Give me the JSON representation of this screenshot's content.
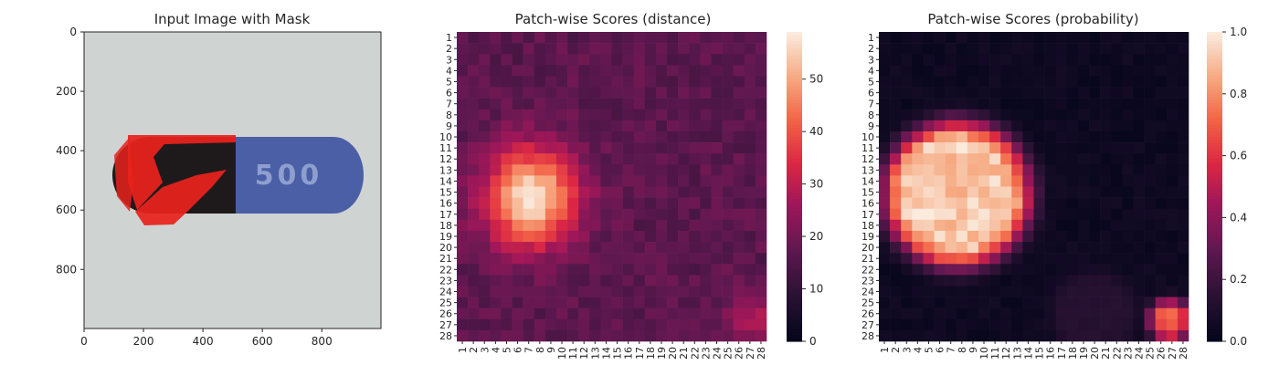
{
  "chart_data": [
    {
      "type": "image",
      "title": "Input Image with Mask",
      "xlabel": "",
      "ylabel": "",
      "xlim": [
        0,
        999
      ],
      "ylim": [
        999,
        0
      ],
      "xticks": [
        0,
        200,
        400,
        600,
        800
      ],
      "yticks": [
        0,
        200,
        400,
        600,
        800
      ],
      "capsule_text": "500",
      "colors": {
        "background": "#cfd4d3",
        "capsule_cap": "#1e1a1c",
        "capsule_body": "#4b5fa6",
        "mask": "#e8221c"
      }
    },
    {
      "type": "heatmap",
      "title": "Patch-wise Scores (distance)",
      "rows": 28,
      "cols": 28,
      "xticklabels": [
        "1",
        "2",
        "3",
        "4",
        "5",
        "6",
        "7",
        "8",
        "9",
        "10",
        "11",
        "12",
        "13",
        "14",
        "15",
        "16",
        "17",
        "18",
        "19",
        "20",
        "21",
        "22",
        "23",
        "24",
        "25",
        "26",
        "27",
        "28"
      ],
      "yticklabels": [
        "1",
        "2",
        "3",
        "4",
        "5",
        "6",
        "7",
        "8",
        "9",
        "10",
        "11",
        "12",
        "13",
        "14",
        "15",
        "16",
        "17",
        "18",
        "19",
        "20",
        "21",
        "22",
        "23",
        "24",
        "25",
        "26",
        "27",
        "28"
      ],
      "vmin": 0,
      "vmax": 59,
      "colorbar_ticks": [
        0,
        10,
        20,
        30,
        40,
        50
      ],
      "colormap": "rocket",
      "model": {
        "background": 17,
        "hotspots": [
          {
            "row": 15.5,
            "col": 7.2,
            "peak": 41,
            "sigma_r": 3.1,
            "sigma_c": 2.9
          },
          {
            "row": 26.5,
            "col": 27.5,
            "peak": 12,
            "sigma_r": 1.5,
            "sigma_c": 1.8
          }
        ]
      }
    },
    {
      "type": "heatmap",
      "title": "Patch-wise Scores (probability)",
      "rows": 28,
      "cols": 28,
      "xticklabels": [
        "1",
        "2",
        "3",
        "4",
        "5",
        "6",
        "7",
        "8",
        "9",
        "10",
        "11",
        "12",
        "13",
        "14",
        "15",
        "16",
        "17",
        "18",
        "19",
        "20",
        "21",
        "22",
        "23",
        "24",
        "25",
        "26",
        "27",
        "28"
      ],
      "yticklabels": [
        "1",
        "2",
        "3",
        "4",
        "5",
        "6",
        "7",
        "8",
        "9",
        "10",
        "11",
        "12",
        "13",
        "14",
        "15",
        "16",
        "17",
        "18",
        "19",
        "20",
        "21",
        "22",
        "23",
        "24",
        "25",
        "26",
        "27",
        "28"
      ],
      "vmin": 0,
      "vmax": 1.0,
      "colorbar_ticks": [
        0.0,
        0.2,
        0.4,
        0.6,
        0.8,
        1.0
      ],
      "colorbar_ticklabels": [
        "0.0",
        "0.2",
        "0.4",
        "0.6",
        "0.8",
        "1.0"
      ],
      "colormap": "rocket",
      "model": {
        "background": 0.02,
        "hotspots": [
          {
            "row": 15.2,
            "col": 7.6,
            "peak": 1.0,
            "radius": 4.6,
            "falloff": 1.6
          },
          {
            "row": 26.6,
            "col": 26.8,
            "peak": 0.75,
            "radius": 0.8,
            "falloff": 0.9
          },
          {
            "row": 26.0,
            "col": 20.0,
            "peak": 0.15,
            "radius": 2.5,
            "falloff": 1.5
          }
        ]
      }
    }
  ]
}
